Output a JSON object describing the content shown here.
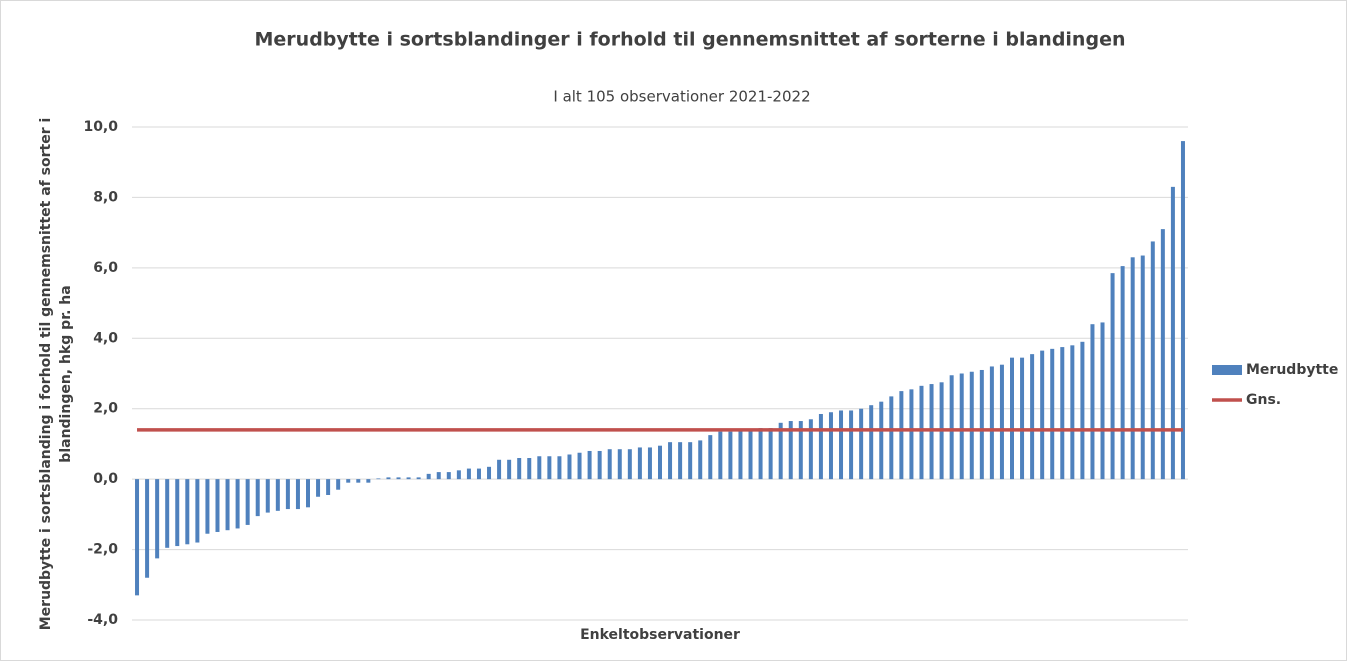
{
  "chart_data": {
    "type": "bar",
    "title": "Merudbytte i sortsblandinger i forhold til gennemsnittet af sorterne i blandingen",
    "subtitle": "I alt 105 observationer 2021-2022",
    "x_label": "Enkeltobservationer",
    "y_label": [
      "Merudbytte i sortsblanding i forhold til gennemsnittet af sorter i",
      "blandingen, hkg pr. ha"
    ],
    "ylim": [
      -4,
      10
    ],
    "yticks": [
      {
        "value": -4,
        "label": "-4,0"
      },
      {
        "value": -2,
        "label": "-2,0"
      },
      {
        "value": 0,
        "label": "0,0"
      },
      {
        "value": 2,
        "label": "2,0"
      },
      {
        "value": 4,
        "label": "4,0"
      },
      {
        "value": 6,
        "label": "6,0"
      },
      {
        "value": 8,
        "label": "8,0"
      },
      {
        "value": 10,
        "label": "10,0"
      }
    ],
    "grid": true,
    "legend": "right",
    "series": [
      {
        "name": "Merudbytte",
        "type": "bar",
        "color": "#4f81bd",
        "values": [
          -3.3,
          -2.8,
          -2.25,
          -1.95,
          -1.9,
          -1.85,
          -1.8,
          -1.55,
          -1.5,
          -1.45,
          -1.4,
          -1.3,
          -1.05,
          -0.95,
          -0.9,
          -0.85,
          -0.85,
          -0.8,
          -0.5,
          -0.45,
          -0.3,
          -0.1,
          -0.1,
          -0.1,
          0.02,
          0.05,
          0.05,
          0.05,
          0.05,
          0.15,
          0.2,
          0.2,
          0.25,
          0.3,
          0.3,
          0.35,
          0.55,
          0.55,
          0.6,
          0.6,
          0.65,
          0.65,
          0.65,
          0.7,
          0.75,
          0.8,
          0.8,
          0.85,
          0.85,
          0.85,
          0.9,
          0.9,
          0.95,
          1.05,
          1.05,
          1.05,
          1.1,
          1.25,
          1.35,
          1.35,
          1.4,
          1.4,
          1.45,
          1.45,
          1.6,
          1.65,
          1.65,
          1.7,
          1.85,
          1.9,
          1.95,
          1.95,
          2.0,
          2.1,
          2.2,
          2.35,
          2.5,
          2.55,
          2.65,
          2.7,
          2.75,
          2.95,
          3.0,
          3.05,
          3.1,
          3.2,
          3.25,
          3.45,
          3.45,
          3.55,
          3.65,
          3.7,
          3.75,
          3.8,
          3.9,
          4.4,
          4.45,
          5.85,
          6.05,
          6.3,
          6.35,
          6.75,
          7.1,
          8.3,
          9.6
        ]
      },
      {
        "name": "Gns.",
        "type": "line",
        "color": "#c0504d",
        "values": [
          1.4,
          1.4,
          1.4,
          1.4,
          1.4,
          1.4,
          1.4,
          1.4,
          1.4,
          1.4,
          1.4,
          1.4,
          1.4,
          1.4,
          1.4,
          1.4,
          1.4,
          1.4,
          1.4,
          1.4,
          1.4,
          1.4,
          1.4,
          1.4,
          1.4,
          1.4,
          1.4,
          1.4,
          1.4,
          1.4,
          1.4,
          1.4,
          1.4,
          1.4,
          1.4,
          1.4,
          1.4,
          1.4,
          1.4,
          1.4,
          1.4,
          1.4,
          1.4,
          1.4,
          1.4,
          1.4,
          1.4,
          1.4,
          1.4,
          1.4,
          1.4,
          1.4,
          1.4,
          1.4,
          1.4,
          1.4,
          1.4,
          1.4,
          1.4,
          1.4,
          1.4,
          1.4,
          1.4,
          1.4,
          1.4,
          1.4,
          1.4,
          1.4,
          1.4,
          1.4,
          1.4,
          1.4,
          1.4,
          1.4,
          1.4,
          1.4,
          1.4,
          1.4,
          1.4,
          1.4,
          1.4,
          1.4,
          1.4,
          1.4,
          1.4,
          1.4,
          1.4,
          1.4,
          1.4,
          1.4,
          1.4,
          1.4,
          1.4,
          1.4,
          1.4,
          1.4,
          1.4,
          1.4,
          1.4,
          1.4,
          1.4,
          1.4,
          1.4,
          1.4,
          1.4
        ]
      }
    ]
  }
}
